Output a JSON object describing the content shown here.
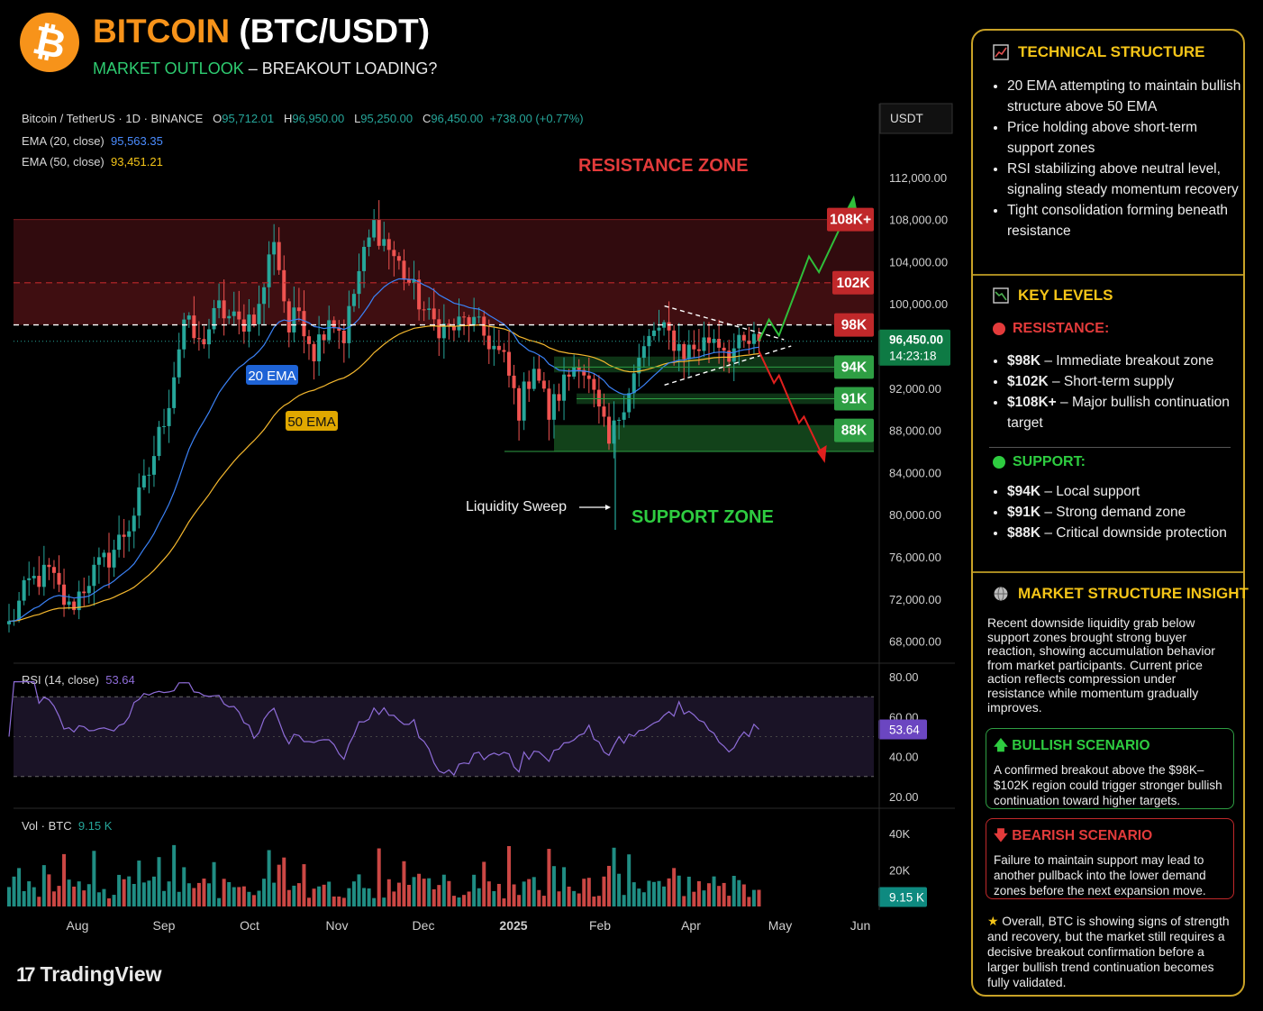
{
  "header": {
    "logo_symbol": "₿",
    "title_coin": "BITCOIN",
    "title_pair": "(BTC/USDT)",
    "subtitle_accent": "MARKET OUTLOOK",
    "subtitle_rest": " – BREAKOUT LOADING?"
  },
  "legend": {
    "symbol": "Bitcoin / TetherUS · 1D · BINANCE",
    "o_label": "O",
    "o_val": "95,712.01",
    "h_label": "H",
    "h_val": "96,950.00",
    "l_label": "L",
    "l_val": "95,250.00",
    "c_label": "C",
    "c_val": "96,450.00",
    "change": "+738.00 (+0.77%)",
    "ema20_label": "EMA (20, close)",
    "ema20_val": "95,563.35",
    "ema50_label": "EMA (50, close)",
    "ema50_val": "93,451.21",
    "rsi_label": "RSI (14, close)",
    "rsi_val": "53.64",
    "vol_label": "Vol · BTC",
    "vol_val": "9.15 K"
  },
  "brand": {
    "mark": "17",
    "name": "TradingView"
  },
  "colors": {
    "up": "#26a69a",
    "down": "#ef5350",
    "ema20": "#3b82f6",
    "ema50": "#f5b82e",
    "rsi": "#8e6cd8",
    "resistance": "#c0282a",
    "support": "#2e9e43",
    "bull_arrow": "#2fbf3a",
    "bear_arrow": "#e0201e"
  },
  "chart_data": {
    "type": "candlestick",
    "symbol": "BTC/USDT",
    "interval": "1D",
    "exchange": "BINANCE",
    "currency": "USDT",
    "ylim": [
      66000,
      116000
    ],
    "y_ticks": [
      68000,
      72000,
      76000,
      80000,
      84000,
      88000,
      92000,
      96000,
      100000,
      104000,
      108000,
      112000
    ],
    "y_tick_labels": [
      "68,000.00",
      "72,000.00",
      "76,000.00",
      "80,000.00",
      "84,000.00",
      "88,000.00",
      "92,000.00",
      "",
      "100,000.00",
      "104,000.00",
      "108,000.00",
      "112,000.00"
    ],
    "x_ticks": [
      {
        "label": "Aug",
        "bold": false
      },
      {
        "label": "Sep",
        "bold": false
      },
      {
        "label": "Oct",
        "bold": false
      },
      {
        "label": "Nov",
        "bold": false
      },
      {
        "label": "Dec",
        "bold": false
      },
      {
        "label": "2025",
        "bold": true
      },
      {
        "label": "Feb",
        "bold": false
      },
      {
        "label": "Apr",
        "bold": false
      },
      {
        "label": "May",
        "bold": false
      },
      {
        "label": "Jun",
        "bold": false
      }
    ],
    "price_anchors": [
      [
        0,
        69500
      ],
      [
        4,
        73500
      ],
      [
        8,
        74500
      ],
      [
        12,
        71000
      ],
      [
        16,
        74000
      ],
      [
        20,
        76000
      ],
      [
        24,
        79000
      ],
      [
        28,
        84000
      ],
      [
        32,
        91000
      ],
      [
        35,
        98500
      ],
      [
        38,
        96000
      ],
      [
        42,
        99500
      ],
      [
        46,
        98000
      ],
      [
        50,
        99500
      ],
      [
        53,
        106500
      ],
      [
        56,
        97500
      ],
      [
        58,
        99500
      ],
      [
        61,
        95500
      ],
      [
        64,
        99000
      ],
      [
        67,
        97000
      ],
      [
        70,
        103000
      ],
      [
        73,
        107500
      ],
      [
        77,
        104500
      ],
      [
        80,
        102000
      ],
      [
        84,
        98500
      ],
      [
        88,
        97500
      ],
      [
        92,
        98500
      ],
      [
        96,
        96500
      ],
      [
        99,
        94500
      ],
      [
        102,
        90000
      ],
      [
        105,
        94500
      ],
      [
        108,
        89500
      ],
      [
        111,
        92500
      ],
      [
        114,
        95000
      ],
      [
        117,
        91000
      ],
      [
        120,
        86500
      ],
      [
        123,
        91000
      ],
      [
        126,
        94500
      ],
      [
        129,
        97500
      ],
      [
        132,
        97000
      ],
      [
        135,
        95500
      ],
      [
        138,
        96000
      ],
      [
        141,
        97000
      ],
      [
        144,
        95500
      ],
      [
        147,
        96000
      ],
      [
        150,
        96450
      ]
    ],
    "ema20_current": 95563.35,
    "ema50_current": 93451.21,
    "last_price": 96450.0,
    "last_price_label": "96,450.00",
    "countdown": "14:23:18",
    "levels": [
      {
        "label": "108K+",
        "value": 108000,
        "kind": "resistance"
      },
      {
        "label": "102K",
        "value": 102000,
        "kind": "resistance"
      },
      {
        "label": "98K",
        "value": 98000,
        "kind": "resistance"
      },
      {
        "label": "94K",
        "value": 94000,
        "kind": "support"
      },
      {
        "label": "91K",
        "value": 91000,
        "kind": "support"
      },
      {
        "label": "88K",
        "value": 88000,
        "kind": "support"
      }
    ],
    "annotations": {
      "resistance_zone": "RESISTANCE ZONE",
      "support_zone": "SUPPORT ZONE",
      "liquidity_sweep": "Liquidity Sweep",
      "ema20_tag": "20 EMA",
      "ema50_tag": "50 EMA"
    },
    "rsi": {
      "ylim": [
        15,
        85
      ],
      "ticks": [
        80,
        60,
        40,
        20
      ],
      "tick_labels": [
        "80.00",
        "60.00",
        "40.00",
        "20.00"
      ],
      "overbought": 70,
      "oversold": 30,
      "current": 53.64,
      "current_label": "53.64"
    },
    "volume": {
      "ticks": [
        40000,
        20000
      ],
      "tick_labels": [
        "40K",
        "20K"
      ],
      "max": 50000,
      "current": 9150,
      "current_label": "9.15 K"
    },
    "axis_currency": "USDT"
  },
  "panel": {
    "technical": {
      "title": "TECHNICAL STRUCTURE",
      "bullets": [
        "20 EMA attempting to maintain bullish structure above 50 EMA",
        "Price holding above short-term support zones",
        "RSI stabilizing above neutral level, signaling steady momentum recovery",
        "Tight consolidation forming beneath resistance"
      ]
    },
    "key_levels": {
      "title": "KEY LEVELS",
      "resistance_heading": "RESISTANCE:",
      "resistance": [
        {
          "level": "$98K",
          "text": " – Immediate breakout zone"
        },
        {
          "level": "$102K",
          "text": " – Short-term supply"
        },
        {
          "level": "$108K+",
          "text": " – Major bullish continuation target"
        }
      ],
      "support_heading": "SUPPORT:",
      "support": [
        {
          "level": "$94K",
          "text": " – Local support"
        },
        {
          "level": "$91K",
          "text": " – Strong demand zone"
        },
        {
          "level": "$88K",
          "text": " – Critical downside protection"
        }
      ]
    },
    "insight": {
      "title": "MARKET STRUCTURE INSIGHT",
      "text": "Recent downside liquidity grab below support zones brought strong buyer reaction, showing accumulation behavior from market participants. Current price action reflects compression under resistance while momentum gradually improves."
    },
    "bullish": {
      "title": "BULLISH SCENARIO",
      "text": "A confirmed breakout above the $98K–$102K region could trigger stronger bullish continuation toward higher targets."
    },
    "bearish": {
      "title": "BEARISH SCENARIO",
      "text": "Failure to maintain support may lead to another pullback into the lower demand zones before the next expansion move."
    },
    "overall": {
      "star": "★",
      "text": "Overall, BTC is showing signs of strength and recovery, but the market still requires a decisive breakout confirmation before a larger bullish trend continuation becomes fully validated."
    }
  }
}
